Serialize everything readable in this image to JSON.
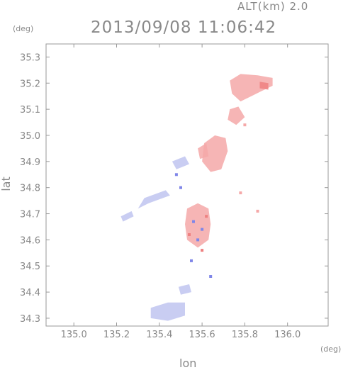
{
  "header": {
    "altitude_label": "ALT(km) 2.0",
    "timestamp": "2013/09/08 11:06:42",
    "lat_unit": "(deg)",
    "lon_unit": "(deg)"
  },
  "axes": {
    "xlabel": "lon",
    "ylabel": "lat",
    "lon_range": [
      134.87,
      136.19
    ],
    "lat_range": [
      34.27,
      35.35
    ],
    "lon_ticks": [
      135.0,
      135.2,
      135.4,
      135.6,
      135.8,
      136.0
    ],
    "lon_tick_labels": [
      "135.0",
      "135.2",
      "135.4",
      "135.6",
      "135.8",
      "136.0"
    ],
    "lat_ticks": [
      35.3,
      35.2,
      35.1,
      35.0,
      34.9,
      34.8,
      34.7,
      34.6,
      34.5,
      34.4,
      34.3
    ],
    "lat_tick_labels": [
      "35.3",
      "35.2",
      "35.1",
      "35.0",
      "34.9",
      "34.8",
      "34.7",
      "34.6",
      "34.5",
      "34.4",
      "34.3"
    ]
  },
  "colors": {
    "frame": "#999999",
    "positive": "#f5a8a8",
    "positive_strong": "#ee8080",
    "negative": "#c0c4f0",
    "negative_strong": "#7f86e8"
  },
  "echo_regions": [
    {
      "name": "north-cell",
      "sign": "positive",
      "points": [
        [
          135.73,
          35.21
        ],
        [
          135.78,
          35.235
        ],
        [
          135.86,
          35.23
        ],
        [
          135.93,
          35.22
        ],
        [
          135.93,
          35.19
        ],
        [
          135.88,
          35.17
        ],
        [
          135.83,
          35.15
        ],
        [
          135.78,
          35.13
        ],
        [
          135.74,
          35.16
        ]
      ]
    },
    {
      "name": "north-cell-core",
      "sign": "positive_strong",
      "points": [
        [
          135.87,
          35.205
        ],
        [
          135.91,
          35.2
        ],
        [
          135.91,
          35.175
        ],
        [
          135.87,
          35.18
        ]
      ]
    },
    {
      "name": "north-tail",
      "sign": "positive",
      "points": [
        [
          135.73,
          35.1
        ],
        [
          135.77,
          35.11
        ],
        [
          135.8,
          35.07
        ],
        [
          135.76,
          35.04
        ],
        [
          135.72,
          35.06
        ]
      ]
    },
    {
      "name": "central-cell",
      "sign": "positive",
      "points": [
        [
          135.61,
          34.97
        ],
        [
          135.66,
          35.0
        ],
        [
          135.71,
          34.99
        ],
        [
          135.72,
          34.94
        ],
        [
          135.69,
          34.87
        ],
        [
          135.64,
          34.86
        ],
        [
          135.6,
          34.9
        ]
      ]
    },
    {
      "name": "central-neck",
      "sign": "positive",
      "points": [
        [
          135.58,
          34.95
        ],
        [
          135.62,
          34.97
        ],
        [
          135.63,
          34.92
        ],
        [
          135.59,
          34.91
        ]
      ]
    },
    {
      "name": "middle-mix",
      "sign": "positive",
      "points": [
        [
          135.53,
          34.72
        ],
        [
          135.58,
          34.74
        ],
        [
          135.63,
          34.72
        ],
        [
          135.64,
          34.66
        ],
        [
          135.63,
          34.6
        ],
        [
          135.58,
          34.57
        ],
        [
          135.53,
          34.6
        ],
        [
          135.52,
          34.66
        ]
      ]
    },
    {
      "name": "west-band",
      "sign": "negative",
      "points": [
        [
          135.33,
          34.76
        ],
        [
          135.43,
          34.79
        ],
        [
          135.45,
          34.77
        ],
        [
          135.35,
          34.74
        ],
        [
          135.3,
          34.72
        ]
      ]
    },
    {
      "name": "west-small",
      "sign": "negative",
      "points": [
        [
          135.22,
          34.69
        ],
        [
          135.27,
          34.71
        ],
        [
          135.28,
          34.69
        ],
        [
          135.23,
          34.67
        ]
      ]
    },
    {
      "name": "upper-blue",
      "sign": "negative",
      "points": [
        [
          135.46,
          34.9
        ],
        [
          135.52,
          34.92
        ],
        [
          135.54,
          34.89
        ],
        [
          135.48,
          34.87
        ]
      ]
    },
    {
      "name": "south-blue",
      "sign": "negative",
      "points": [
        [
          135.36,
          34.34
        ],
        [
          135.44,
          34.36
        ],
        [
          135.52,
          34.36
        ],
        [
          135.52,
          34.31
        ],
        [
          135.44,
          34.29
        ],
        [
          135.36,
          34.3
        ]
      ]
    },
    {
      "name": "south-upper-blue",
      "sign": "negative",
      "points": [
        [
          135.49,
          34.42
        ],
        [
          135.54,
          34.43
        ],
        [
          135.55,
          34.4
        ],
        [
          135.5,
          34.39
        ]
      ]
    }
  ],
  "scatter_points": [
    {
      "lon": 135.56,
      "lat": 34.67,
      "sign": "negative_strong"
    },
    {
      "lon": 135.6,
      "lat": 34.64,
      "sign": "negative_strong"
    },
    {
      "lon": 135.54,
      "lat": 34.62,
      "sign": "positive_strong"
    },
    {
      "lon": 135.58,
      "lat": 34.6,
      "sign": "negative_strong"
    },
    {
      "lon": 135.62,
      "lat": 34.69,
      "sign": "positive_strong"
    },
    {
      "lon": 135.5,
      "lat": 34.8,
      "sign": "negative_strong"
    },
    {
      "lon": 135.55,
      "lat": 34.52,
      "sign": "negative_strong"
    },
    {
      "lon": 135.64,
      "lat": 34.46,
      "sign": "negative_strong"
    },
    {
      "lon": 135.78,
      "lat": 34.78,
      "sign": "positive"
    },
    {
      "lon": 135.86,
      "lat": 34.71,
      "sign": "positive"
    },
    {
      "lon": 135.8,
      "lat": 35.04,
      "sign": "positive"
    },
    {
      "lon": 135.48,
      "lat": 34.85,
      "sign": "negative_strong"
    },
    {
      "lon": 135.6,
      "lat": 34.56,
      "sign": "positive_strong"
    }
  ]
}
